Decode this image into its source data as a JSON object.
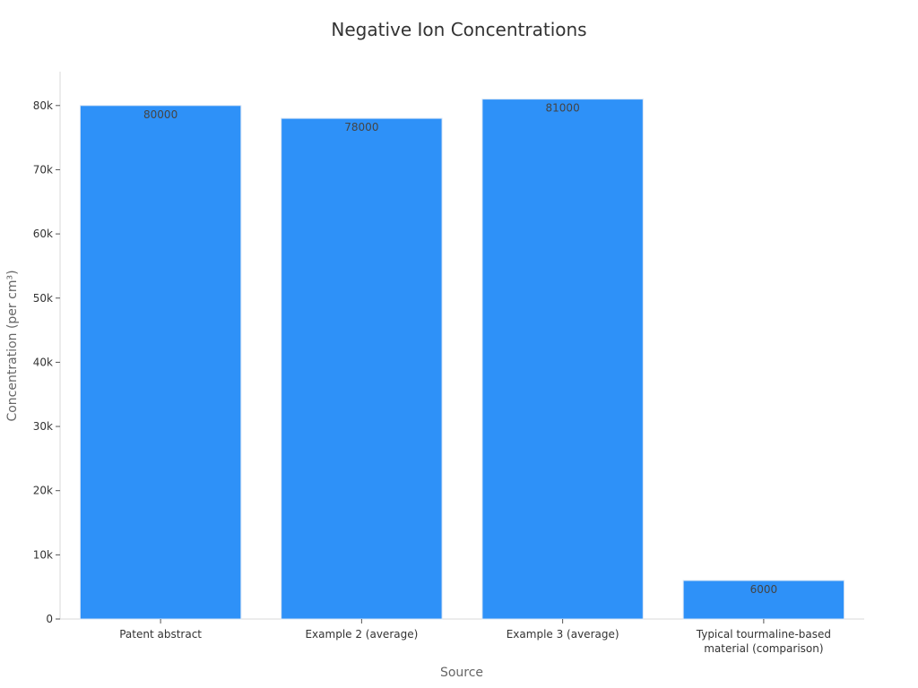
{
  "chart_data": {
    "type": "bar",
    "title": "Negative Ion Concentrations",
    "xlabel": "Source",
    "ylabel": "Concentration (per cm³)",
    "categories": [
      [
        "Patent abstract"
      ],
      [
        "Example 2 (average)"
      ],
      [
        "Example 3 (average)"
      ],
      [
        "Typical tourmaline-based",
        "material (comparison)"
      ]
    ],
    "values": [
      80000,
      78000,
      81000,
      6000
    ],
    "data_labels": [
      "80000",
      "78000",
      "81000",
      "6000"
    ],
    "yticks": [
      0,
      10000,
      20000,
      30000,
      40000,
      50000,
      60000,
      70000,
      80000
    ],
    "ytick_labels": [
      "0",
      "10k",
      "20k",
      "30k",
      "40k",
      "50k",
      "60k",
      "70k",
      "80k"
    ],
    "ylim": [
      0,
      85000
    ],
    "grid": false,
    "bar_color": "#2E91F8",
    "bar_edge_color": "#D6E4F5",
    "axis_color": "#D9D9D9"
  }
}
